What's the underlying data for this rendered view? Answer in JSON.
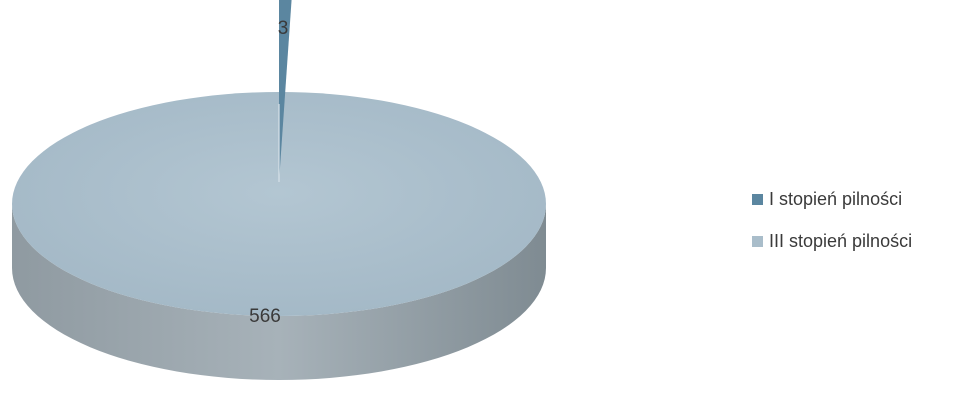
{
  "chart_data": {
    "type": "pie",
    "style": "3d",
    "categories": [
      "I stopień pilności",
      "III stopień pilności"
    ],
    "values": [
      3,
      566
    ],
    "data_labels": [
      "3",
      "566"
    ],
    "colors": [
      "#5b86a0",
      "#a9bdca"
    ],
    "legend_position": "right",
    "legend": [
      "I stopień pilności",
      "III stopień pilności"
    ]
  }
}
